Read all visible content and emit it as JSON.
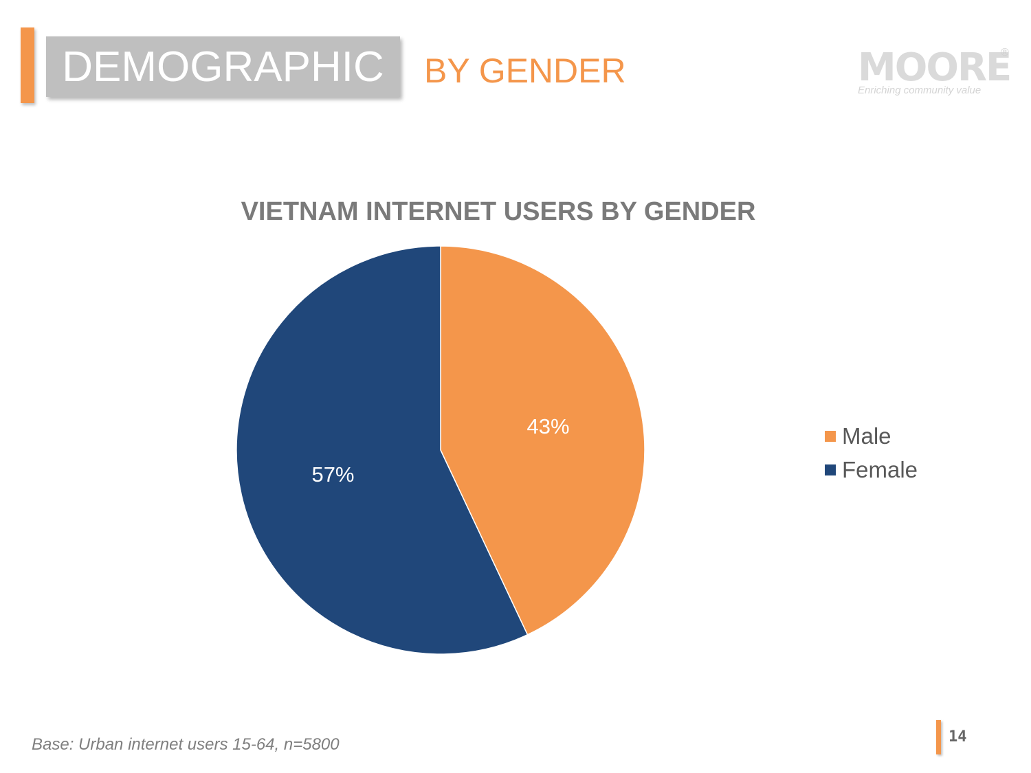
{
  "header": {
    "section_label": "DEMOGRAPHIC",
    "subtitle": "BY GENDER"
  },
  "logo": {
    "wordmark": "MOORE",
    "registered_mark": "®",
    "tagline": "Enriching community value"
  },
  "chart_data": {
    "type": "pie",
    "title": "VIETNAM INTERNET USERS BY GENDER",
    "categories": [
      "Male",
      "Female"
    ],
    "values": [
      43,
      57
    ],
    "labels": [
      "43%",
      "57%"
    ],
    "colors": [
      "#f4964b",
      "#20477a"
    ],
    "start_angle": "12 o'clock, clockwise",
    "legend_position": "right"
  },
  "footnote": "Base: Urban internet users 15-64, n=5800",
  "page_number": "14",
  "colors": {
    "accent": "#f4964b",
    "header_box": "#bfbfbf",
    "title_text": "#7a7a7a"
  }
}
